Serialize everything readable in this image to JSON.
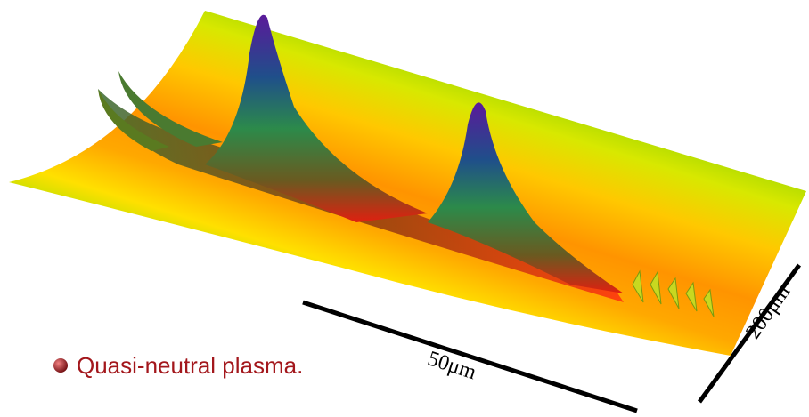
{
  "bullet": "Quasi-neutral plasma.",
  "scale_bars": [
    {
      "label": "50μm"
    },
    {
      "label": "200μm"
    }
  ]
}
